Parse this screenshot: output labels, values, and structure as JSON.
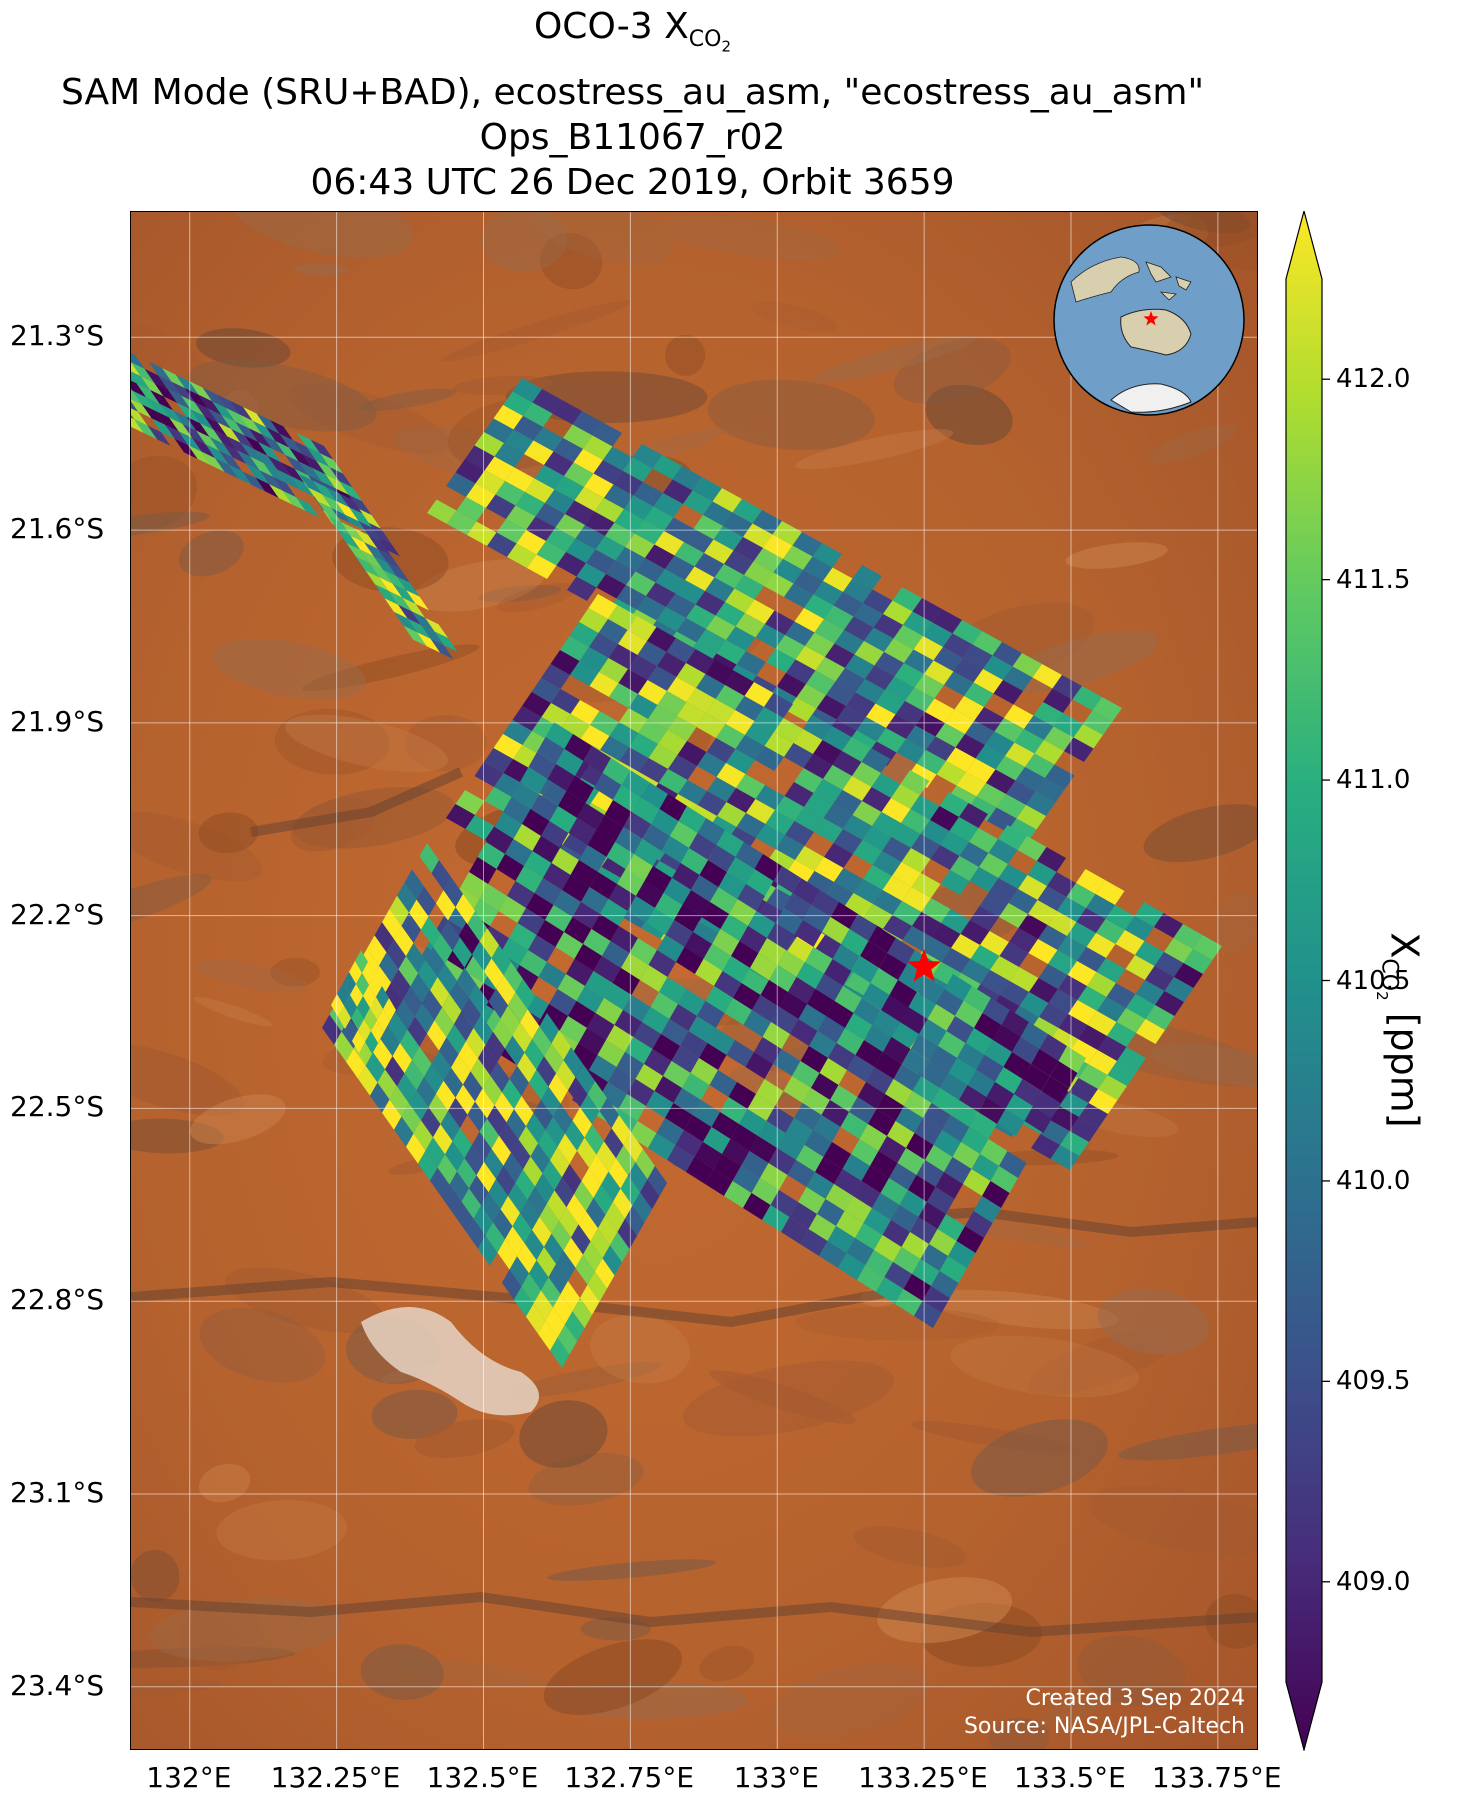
{
  "title": {
    "line1_prefix": "OCO-3 X",
    "line1_sub": "CO",
    "line1_sub2": "2",
    "line2": "SAM Mode (SRU+BAD), ecostress_au_asm, \"ecostress_au_asm\"",
    "line3": "Ops_B11067_r02",
    "line4": "06:43 UTC 26 Dec 2019, Orbit 3659"
  },
  "map": {
    "lat_labels": [
      "21.3°S",
      "21.6°S",
      "21.9°S",
      "22.2°S",
      "22.5°S",
      "22.8°S",
      "23.1°S",
      "23.4°S"
    ],
    "lon_labels": [
      "132°E",
      "132.25°E",
      "132.5°E",
      "132.75°E",
      "133°E",
      "133.25°E",
      "133.5°E",
      "133.75°E"
    ],
    "target_marker": {
      "lon": 133.25,
      "lat": -22.28,
      "color": "#ff0000"
    },
    "credit_line1": "Created 3 Sep 2024",
    "credit_line2": "Source: NASA/JPL-Caltech",
    "basemap_colors": [
      "#b5622e",
      "#c56a31",
      "#a9582a",
      "#8f5a3a",
      "#d1874e"
    ]
  },
  "colorbar": {
    "title_prefix": "X",
    "title_sub": "CO",
    "title_sub2": "2",
    "title_suffix": " [ppm]",
    "range": [
      408.75,
      412.25
    ],
    "ticks": [
      "409.0",
      "409.5",
      "410.0",
      "410.5",
      "411.0",
      "411.5",
      "412.0"
    ],
    "colormap": "viridis",
    "colormap_stops": [
      "#440154",
      "#472d7b",
      "#3b528b",
      "#2c728e",
      "#21918c",
      "#28ae80",
      "#5ec962",
      "#addc30",
      "#fde725"
    ]
  },
  "inset": {
    "marker_color": "#ff0000",
    "ocean_color": "#6f9fc8",
    "land_color": "#d8cfae"
  }
}
